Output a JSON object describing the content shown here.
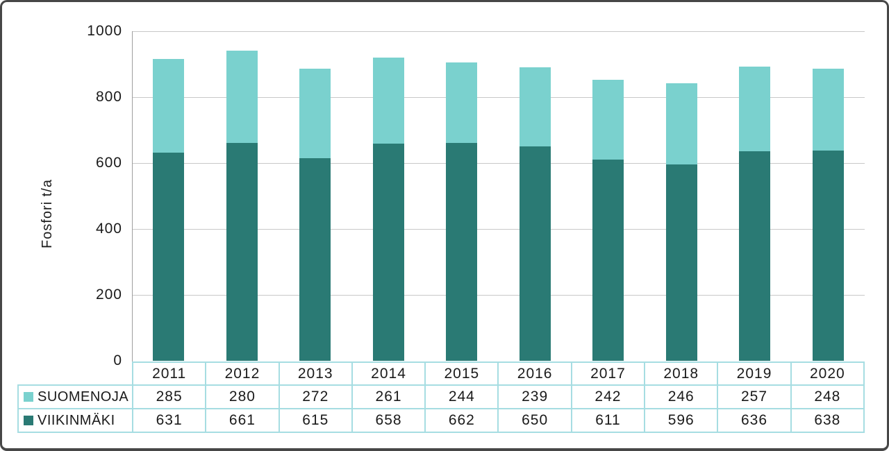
{
  "chart_data": {
    "type": "bar",
    "stacked": true,
    "title": "",
    "ylabel": "Fosfori t/a",
    "xlabel": "",
    "ylim": [
      0,
      1000
    ],
    "yticks": [
      0,
      200,
      400,
      600,
      800,
      1000
    ],
    "grid": true,
    "legend_position": "table-left-column",
    "categories": [
      "2011",
      "2012",
      "2013",
      "2014",
      "2015",
      "2016",
      "2017",
      "2018",
      "2019",
      "2020"
    ],
    "series": [
      {
        "name": "SUOMENOJA",
        "color": "#7AD1CE",
        "stack_order": "top",
        "values": [
          285,
          280,
          272,
          261,
          244,
          239,
          242,
          246,
          257,
          248
        ]
      },
      {
        "name": "VIIKINMÄKI",
        "color": "#2A7A74",
        "stack_order": "bottom",
        "values": [
          631,
          661,
          615,
          658,
          662,
          650,
          611,
          596,
          636,
          638
        ]
      }
    ]
  },
  "colors": {
    "suomenoja": "#7AD1CE",
    "viikinmaki": "#2A7A74",
    "gridline": "#C8C8C8",
    "axis_line": "#9E9E9E",
    "table_border": "#A6DDE2",
    "text": "#1A1A1A",
    "frame_border": "#474747",
    "background": "#FFFFFF"
  }
}
